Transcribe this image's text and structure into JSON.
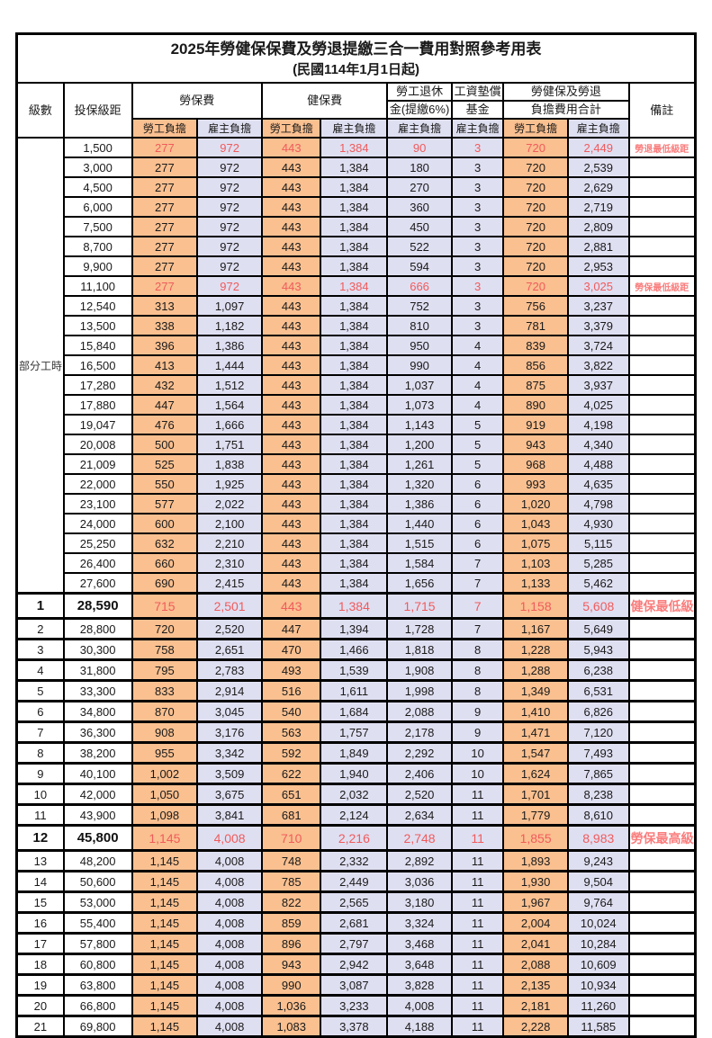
{
  "title": "2025年勞健保保費及勞退提繳三合一費用對照參考用表",
  "subtitle": "(民國114年1月1日起)",
  "header": {
    "level": "級數",
    "bracket": "投保級距",
    "labor_ins": "勞保費",
    "health_ins": "健保費",
    "pension_line1": "勞工退休",
    "pension_line2": "金(提繳6%)",
    "wage_fund_line1": "工資墊償",
    "wage_fund_line2": "基金",
    "total_line1": "勞健保及勞退",
    "total_line2": "負擔費用合計",
    "remark": "備註",
    "employee_share": "勞工負擔",
    "employer_share": "雇主負擔"
  },
  "part_time_label": "部分工時",
  "colors": {
    "employee_bg": "#fac090",
    "employer_bg": "#dfdff2",
    "highlight_text": "#f05b5b",
    "remark_text": "#fa7d7d",
    "border": "#000000"
  },
  "rows": [
    {
      "bracket": "1,500",
      "labor_emp": "277",
      "labor_er": "972",
      "health_emp": "443",
      "health_er": "1,384",
      "pension": "90",
      "fund": "3",
      "total_emp": "720",
      "total_er": "2,449",
      "remark": "勞退最低級距",
      "highlight": true
    },
    {
      "bracket": "3,000",
      "labor_emp": "277",
      "labor_er": "972",
      "health_emp": "443",
      "health_er": "1,384",
      "pension": "180",
      "fund": "3",
      "total_emp": "720",
      "total_er": "2,539"
    },
    {
      "bracket": "4,500",
      "labor_emp": "277",
      "labor_er": "972",
      "health_emp": "443",
      "health_er": "1,384",
      "pension": "270",
      "fund": "3",
      "total_emp": "720",
      "total_er": "2,629"
    },
    {
      "bracket": "6,000",
      "labor_emp": "277",
      "labor_er": "972",
      "health_emp": "443",
      "health_er": "1,384",
      "pension": "360",
      "fund": "3",
      "total_emp": "720",
      "total_er": "2,719"
    },
    {
      "bracket": "7,500",
      "labor_emp": "277",
      "labor_er": "972",
      "health_emp": "443",
      "health_er": "1,384",
      "pension": "450",
      "fund": "3",
      "total_emp": "720",
      "total_er": "2,809"
    },
    {
      "bracket": "8,700",
      "labor_emp": "277",
      "labor_er": "972",
      "health_emp": "443",
      "health_er": "1,384",
      "pension": "522",
      "fund": "3",
      "total_emp": "720",
      "total_er": "2,881"
    },
    {
      "bracket": "9,900",
      "labor_emp": "277",
      "labor_er": "972",
      "health_emp": "443",
      "health_er": "1,384",
      "pension": "594",
      "fund": "3",
      "total_emp": "720",
      "total_er": "2,953"
    },
    {
      "bracket": "11,100",
      "labor_emp": "277",
      "labor_er": "972",
      "health_emp": "443",
      "health_er": "1,384",
      "pension": "666",
      "fund": "3",
      "total_emp": "720",
      "total_er": "3,025",
      "remark": "勞保最低級距",
      "highlight": true
    },
    {
      "bracket": "12,540",
      "labor_emp": "313",
      "labor_er": "1,097",
      "health_emp": "443",
      "health_er": "1,384",
      "pension": "752",
      "fund": "3",
      "total_emp": "756",
      "total_er": "3,237"
    },
    {
      "bracket": "13,500",
      "labor_emp": "338",
      "labor_er": "1,182",
      "health_emp": "443",
      "health_er": "1,384",
      "pension": "810",
      "fund": "3",
      "total_emp": "781",
      "total_er": "3,379"
    },
    {
      "bracket": "15,840",
      "labor_emp": "396",
      "labor_er": "1,386",
      "health_emp": "443",
      "health_er": "1,384",
      "pension": "950",
      "fund": "4",
      "total_emp": "839",
      "total_er": "3,724"
    },
    {
      "bracket": "16,500",
      "labor_emp": "413",
      "labor_er": "1,444",
      "health_emp": "443",
      "health_er": "1,384",
      "pension": "990",
      "fund": "4",
      "total_emp": "856",
      "total_er": "3,822"
    },
    {
      "bracket": "17,280",
      "labor_emp": "432",
      "labor_er": "1,512",
      "health_emp": "443",
      "health_er": "1,384",
      "pension": "1,037",
      "fund": "4",
      "total_emp": "875",
      "total_er": "3,937"
    },
    {
      "bracket": "17,880",
      "labor_emp": "447",
      "labor_er": "1,564",
      "health_emp": "443",
      "health_er": "1,384",
      "pension": "1,073",
      "fund": "4",
      "total_emp": "890",
      "total_er": "4,025"
    },
    {
      "bracket": "19,047",
      "labor_emp": "476",
      "labor_er": "1,666",
      "health_emp": "443",
      "health_er": "1,384",
      "pension": "1,143",
      "fund": "5",
      "total_emp": "919",
      "total_er": "4,198"
    },
    {
      "bracket": "20,008",
      "labor_emp": "500",
      "labor_er": "1,751",
      "health_emp": "443",
      "health_er": "1,384",
      "pension": "1,200",
      "fund": "5",
      "total_emp": "943",
      "total_er": "4,340"
    },
    {
      "bracket": "21,009",
      "labor_emp": "525",
      "labor_er": "1,838",
      "health_emp": "443",
      "health_er": "1,384",
      "pension": "1,261",
      "fund": "5",
      "total_emp": "968",
      "total_er": "4,488"
    },
    {
      "bracket": "22,000",
      "labor_emp": "550",
      "labor_er": "1,925",
      "health_emp": "443",
      "health_er": "1,384",
      "pension": "1,320",
      "fund": "6",
      "total_emp": "993",
      "total_er": "4,635"
    },
    {
      "bracket": "23,100",
      "labor_emp": "577",
      "labor_er": "2,022",
      "health_emp": "443",
      "health_er": "1,384",
      "pension": "1,386",
      "fund": "6",
      "total_emp": "1,020",
      "total_er": "4,798"
    },
    {
      "bracket": "24,000",
      "labor_emp": "600",
      "labor_er": "2,100",
      "health_emp": "443",
      "health_er": "1,384",
      "pension": "1,440",
      "fund": "6",
      "total_emp": "1,043",
      "total_er": "4,930"
    },
    {
      "bracket": "25,250",
      "labor_emp": "632",
      "labor_er": "2,210",
      "health_emp": "443",
      "health_er": "1,384",
      "pension": "1,515",
      "fund": "6",
      "total_emp": "1,075",
      "total_er": "5,115"
    },
    {
      "bracket": "26,400",
      "labor_emp": "660",
      "labor_er": "2,310",
      "health_emp": "443",
      "health_er": "1,384",
      "pension": "1,584",
      "fund": "7",
      "total_emp": "1,103",
      "total_er": "5,285"
    },
    {
      "bracket": "27,600",
      "labor_emp": "690",
      "labor_er": "2,415",
      "health_emp": "443",
      "health_er": "1,384",
      "pension": "1,656",
      "fund": "7",
      "total_emp": "1,133",
      "total_er": "5,462"
    },
    {
      "level": "1",
      "bracket": "28,590",
      "labor_emp": "715",
      "labor_er": "2,501",
      "health_emp": "443",
      "health_er": "1,384",
      "pension": "1,715",
      "fund": "7",
      "total_emp": "1,158",
      "total_er": "5,608",
      "remark": "健保最低級距",
      "highlight": true,
      "emphasis": true
    },
    {
      "level": "2",
      "bracket": "28,800",
      "labor_emp": "720",
      "labor_er": "2,520",
      "health_emp": "447",
      "health_er": "1,394",
      "pension": "1,728",
      "fund": "7",
      "total_emp": "1,167",
      "total_er": "5,649"
    },
    {
      "level": "3",
      "bracket": "30,300",
      "labor_emp": "758",
      "labor_er": "2,651",
      "health_emp": "470",
      "health_er": "1,466",
      "pension": "1,818",
      "fund": "8",
      "total_emp": "1,228",
      "total_er": "5,943"
    },
    {
      "level": "4",
      "bracket": "31,800",
      "labor_emp": "795",
      "labor_er": "2,783",
      "health_emp": "493",
      "health_er": "1,539",
      "pension": "1,908",
      "fund": "8",
      "total_emp": "1,288",
      "total_er": "6,238"
    },
    {
      "level": "5",
      "bracket": "33,300",
      "labor_emp": "833",
      "labor_er": "2,914",
      "health_emp": "516",
      "health_er": "1,611",
      "pension": "1,998",
      "fund": "8",
      "total_emp": "1,349",
      "total_er": "6,531"
    },
    {
      "level": "6",
      "bracket": "34,800",
      "labor_emp": "870",
      "labor_er": "3,045",
      "health_emp": "540",
      "health_er": "1,684",
      "pension": "2,088",
      "fund": "9",
      "total_emp": "1,410",
      "total_er": "6,826"
    },
    {
      "level": "7",
      "bracket": "36,300",
      "labor_emp": "908",
      "labor_er": "3,176",
      "health_emp": "563",
      "health_er": "1,757",
      "pension": "2,178",
      "fund": "9",
      "total_emp": "1,471",
      "total_er": "7,120"
    },
    {
      "level": "8",
      "bracket": "38,200",
      "labor_emp": "955",
      "labor_er": "3,342",
      "health_emp": "592",
      "health_er": "1,849",
      "pension": "2,292",
      "fund": "10",
      "total_emp": "1,547",
      "total_er": "7,493"
    },
    {
      "level": "9",
      "bracket": "40,100",
      "labor_emp": "1,002",
      "labor_er": "3,509",
      "health_emp": "622",
      "health_er": "1,940",
      "pension": "2,406",
      "fund": "10",
      "total_emp": "1,624",
      "total_er": "7,865"
    },
    {
      "level": "10",
      "bracket": "42,000",
      "labor_emp": "1,050",
      "labor_er": "3,675",
      "health_emp": "651",
      "health_er": "2,032",
      "pension": "2,520",
      "fund": "11",
      "total_emp": "1,701",
      "total_er": "8,238"
    },
    {
      "level": "11",
      "bracket": "43,900",
      "labor_emp": "1,098",
      "labor_er": "3,841",
      "health_emp": "681",
      "health_er": "2,124",
      "pension": "2,634",
      "fund": "11",
      "total_emp": "1,779",
      "total_er": "8,610"
    },
    {
      "level": "12",
      "bracket": "45,800",
      "labor_emp": "1,145",
      "labor_er": "4,008",
      "health_emp": "710",
      "health_er": "2,216",
      "pension": "2,748",
      "fund": "11",
      "total_emp": "1,855",
      "total_er": "8,983",
      "remark": "勞保最高級距",
      "highlight": true,
      "emphasis": true
    },
    {
      "level": "13",
      "bracket": "48,200",
      "labor_emp": "1,145",
      "labor_er": "4,008",
      "health_emp": "748",
      "health_er": "2,332",
      "pension": "2,892",
      "fund": "11",
      "total_emp": "1,893",
      "total_er": "9,243"
    },
    {
      "level": "14",
      "bracket": "50,600",
      "labor_emp": "1,145",
      "labor_er": "4,008",
      "health_emp": "785",
      "health_er": "2,449",
      "pension": "3,036",
      "fund": "11",
      "total_emp": "1,930",
      "total_er": "9,504"
    },
    {
      "level": "15",
      "bracket": "53,000",
      "labor_emp": "1,145",
      "labor_er": "4,008",
      "health_emp": "822",
      "health_er": "2,565",
      "pension": "3,180",
      "fund": "11",
      "total_emp": "1,967",
      "total_er": "9,764"
    },
    {
      "level": "16",
      "bracket": "55,400",
      "labor_emp": "1,145",
      "labor_er": "4,008",
      "health_emp": "859",
      "health_er": "2,681",
      "pension": "3,324",
      "fund": "11",
      "total_emp": "2,004",
      "total_er": "10,024"
    },
    {
      "level": "17",
      "bracket": "57,800",
      "labor_emp": "1,145",
      "labor_er": "4,008",
      "health_emp": "896",
      "health_er": "2,797",
      "pension": "3,468",
      "fund": "11",
      "total_emp": "2,041",
      "total_er": "10,284"
    },
    {
      "level": "18",
      "bracket": "60,800",
      "labor_emp": "1,145",
      "labor_er": "4,008",
      "health_emp": "943",
      "health_er": "2,942",
      "pension": "3,648",
      "fund": "11",
      "total_emp": "2,088",
      "total_er": "10,609"
    },
    {
      "level": "19",
      "bracket": "63,800",
      "labor_emp": "1,145",
      "labor_er": "4,008",
      "health_emp": "990",
      "health_er": "3,087",
      "pension": "3,828",
      "fund": "11",
      "total_emp": "2,135",
      "total_er": "10,934"
    },
    {
      "level": "20",
      "bracket": "66,800",
      "labor_emp": "1,145",
      "labor_er": "4,008",
      "health_emp": "1,036",
      "health_er": "3,233",
      "pension": "4,008",
      "fund": "11",
      "total_emp": "2,181",
      "total_er": "11,260"
    },
    {
      "level": "21",
      "bracket": "69,800",
      "labor_emp": "1,145",
      "labor_er": "4,008",
      "health_emp": "1,083",
      "health_er": "3,378",
      "pension": "4,188",
      "fund": "11",
      "total_emp": "2,228",
      "total_er": "11,585"
    }
  ]
}
